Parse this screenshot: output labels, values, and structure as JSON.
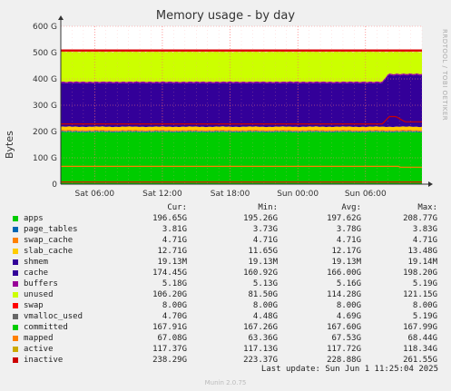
{
  "chart_data": {
    "type": "area",
    "title": "Memory usage - by day",
    "ylabel": "Bytes",
    "xlabel": "",
    "ylim": [
      0,
      600
    ],
    "y_unit": "G",
    "yticks": [
      "0",
      "100 G",
      "200 G",
      "300 G",
      "400 G",
      "500 G",
      "600 G"
    ],
    "xticks": [
      {
        "label": "Sat 06:00",
        "hour": 6
      },
      {
        "label": "Sat 12:00",
        "hour": 12
      },
      {
        "label": "Sat 18:00",
        "hour": 18
      },
      {
        "label": "Sun 00:00",
        "hour": 24
      },
      {
        "label": "Sun 06:00",
        "hour": 30
      }
    ],
    "x_hours": [
      3,
      35
    ],
    "grid": true,
    "stacked_series": [
      {
        "name": "apps",
        "color": "#00cc00",
        "avg": 197.62
      },
      {
        "name": "page_tables",
        "color": "#0066b3",
        "avg": 3.78
      },
      {
        "name": "swap_cache",
        "color": "#ff8000",
        "avg": 4.71
      },
      {
        "name": "slab_cache",
        "color": "#ffcc00",
        "avg": 12.17
      },
      {
        "name": "shmem",
        "color": "#330099",
        "avg": 0.02
      },
      {
        "name": "cache",
        "color": "#330099",
        "avg": 166.0
      },
      {
        "name": "buffers",
        "color": "#990099",
        "avg": 5.16
      },
      {
        "name": "unused",
        "color": "#ccff00",
        "avg": 114.28
      }
    ],
    "cache_bump": {
      "start_hour": 31.5,
      "amount": 30
    },
    "line_series": [
      {
        "name": "swap",
        "color": "#ff0000",
        "value": 8.0
      },
      {
        "name": "committed",
        "color": "#00cc00",
        "value": 167.6
      },
      {
        "name": "mapped",
        "color": "#ff8000",
        "value": 67.53
      },
      {
        "name": "inactive",
        "color": "#cc0000",
        "value": 228.88
      }
    ],
    "total_line": {
      "value": 508,
      "color": "#dd0000"
    }
  },
  "side_label": "RRDTOOL / TOBI OETIKER",
  "legend": {
    "headers": [
      "Cur:",
      "Min:",
      "Avg:",
      "Max:"
    ],
    "rows": [
      {
        "name": "apps",
        "color": "#00cc00",
        "cur": "196.65G",
        "min": "195.26G",
        "avg": "197.62G",
        "max": "208.77G"
      },
      {
        "name": "page_tables",
        "color": "#0066b3",
        "cur": "3.81G",
        "min": "3.73G",
        "avg": "3.78G",
        "max": "3.83G"
      },
      {
        "name": "swap_cache",
        "color": "#ff8000",
        "cur": "4.71G",
        "min": "4.71G",
        "avg": "4.71G",
        "max": "4.71G"
      },
      {
        "name": "slab_cache",
        "color": "#ffcc00",
        "cur": "12.71G",
        "min": "11.65G",
        "avg": "12.17G",
        "max": "13.48G"
      },
      {
        "name": "shmem",
        "color": "#330099",
        "cur": "19.13M",
        "min": "19.13M",
        "avg": "19.13M",
        "max": "19.14M"
      },
      {
        "name": "cache",
        "color": "#330099",
        "cur": "174.45G",
        "min": "160.92G",
        "avg": "166.00G",
        "max": "198.20G"
      },
      {
        "name": "buffers",
        "color": "#990099",
        "cur": "5.18G",
        "min": "5.13G",
        "avg": "5.16G",
        "max": "5.19G"
      },
      {
        "name": "unused",
        "color": "#ccff00",
        "cur": "106.20G",
        "min": "81.50G",
        "avg": "114.28G",
        "max": "121.15G"
      },
      {
        "name": "swap",
        "color": "#ff0000",
        "cur": "8.00G",
        "min": "8.00G",
        "avg": "8.00G",
        "max": "8.00G"
      },
      {
        "name": "vmalloc_used",
        "color": "#666666",
        "cur": "4.70G",
        "min": "4.48G",
        "avg": "4.69G",
        "max": "5.19G"
      },
      {
        "name": "committed",
        "color": "#00cc00",
        "cur": "167.91G",
        "min": "167.26G",
        "avg": "167.60G",
        "max": "167.99G"
      },
      {
        "name": "mapped",
        "color": "#ff8000",
        "cur": "67.08G",
        "min": "63.36G",
        "avg": "67.53G",
        "max": "68.44G"
      },
      {
        "name": "active",
        "color": "#ccaa00",
        "cur": "117.37G",
        "min": "117.13G",
        "avg": "117.72G",
        "max": "118.34G"
      },
      {
        "name": "inactive",
        "color": "#cc0000",
        "cur": "238.29G",
        "min": "223.37G",
        "avg": "228.88G",
        "max": "261.55G"
      }
    ]
  },
  "last_update": "Last update: Sun Jun  1 11:25:04 2025",
  "munin_version": "Munin 2.0.75"
}
